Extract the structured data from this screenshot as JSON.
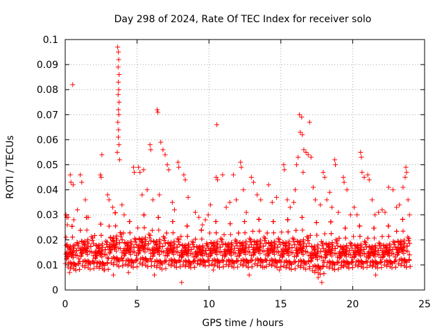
{
  "chart_data": {
    "type": "scatter",
    "title": "Day 298 of 2024, Rate Of TEC Index for receiver solo",
    "xlabel": "GPS time / hours",
    "ylabel": "ROTI / TECUs",
    "xlim": [
      0,
      25
    ],
    "ylim": [
      0,
      0.1
    ],
    "x_ticks": [
      "0",
      "5",
      "10",
      "15",
      "20",
      "25"
    ],
    "y_ticks": [
      "0",
      "0.01",
      "0.02",
      "0.03",
      "0.04",
      "0.05",
      "0.06",
      "0.07",
      "0.08",
      "0.09",
      "0.1"
    ],
    "grid": true,
    "marker": "+",
    "series": [
      {
        "name": "ROTI",
        "color": "#ff0000",
        "points": [
          [
            0.52,
            0.082
          ],
          [
            3.65,
            0.097
          ],
          [
            3.7,
            0.095
          ],
          [
            3.72,
            0.092
          ],
          [
            3.68,
            0.089
          ],
          [
            3.75,
            0.086
          ],
          [
            3.7,
            0.083
          ],
          [
            3.72,
            0.08
          ],
          [
            3.68,
            0.078
          ],
          [
            3.75,
            0.075
          ],
          [
            3.7,
            0.072
          ],
          [
            3.73,
            0.07
          ],
          [
            3.66,
            0.067
          ],
          [
            3.71,
            0.064
          ],
          [
            3.69,
            0.061
          ],
          [
            3.74,
            0.058
          ],
          [
            3.62,
            0.055
          ],
          [
            3.78,
            0.052
          ],
          [
            6.4,
            0.072
          ],
          [
            6.45,
            0.071
          ],
          [
            10.55,
            0.066
          ],
          [
            16.3,
            0.07
          ],
          [
            16.45,
            0.069
          ],
          [
            16.35,
            0.063
          ],
          [
            16.5,
            0.062
          ],
          [
            17.0,
            0.067
          ],
          [
            8.1,
            0.003
          ],
          [
            5.9,
            0.058
          ],
          [
            5.95,
            0.056
          ],
          [
            6.65,
            0.059
          ],
          [
            6.8,
            0.056
          ],
          [
            6.95,
            0.054
          ],
          [
            2.55,
            0.054
          ],
          [
            20.55,
            0.055
          ],
          [
            20.6,
            0.053
          ],
          [
            16.6,
            0.056
          ],
          [
            16.75,
            0.055
          ],
          [
            16.9,
            0.054
          ],
          [
            17.1,
            0.053
          ],
          [
            16.2,
            0.053
          ],
          [
            16.1,
            0.05
          ],
          [
            18.75,
            0.052
          ],
          [
            18.8,
            0.05
          ],
          [
            12.2,
            0.051
          ],
          [
            12.25,
            0.049
          ],
          [
            7.85,
            0.051
          ],
          [
            7.9,
            0.049
          ],
          [
            23.7,
            0.049
          ],
          [
            23.75,
            0.047
          ],
          [
            23.65,
            0.045
          ],
          [
            0.35,
            0.046
          ],
          [
            0.4,
            0.043
          ],
          [
            0.55,
            0.042
          ],
          [
            1.05,
            0.046
          ],
          [
            1.15,
            0.043
          ],
          [
            2.45,
            0.046
          ],
          [
            2.5,
            0.045
          ],
          [
            4.75,
            0.049
          ],
          [
            4.8,
            0.047
          ],
          [
            5.1,
            0.049
          ],
          [
            5.2,
            0.047
          ],
          [
            5.45,
            0.048
          ],
          [
            7.1,
            0.05
          ],
          [
            7.2,
            0.048
          ],
          [
            8.25,
            0.046
          ],
          [
            8.35,
            0.044
          ],
          [
            10.5,
            0.045
          ],
          [
            10.6,
            0.044
          ],
          [
            10.95,
            0.046
          ],
          [
            11.7,
            0.046
          ],
          [
            12.95,
            0.045
          ],
          [
            13.1,
            0.043
          ],
          [
            14.15,
            0.042
          ],
          [
            15.2,
            0.05
          ],
          [
            15.25,
            0.048
          ],
          [
            16.55,
            0.047
          ],
          [
            17.95,
            0.047
          ],
          [
            18.05,
            0.045
          ],
          [
            19.35,
            0.045
          ],
          [
            19.4,
            0.043
          ],
          [
            20.65,
            0.047
          ],
          [
            20.8,
            0.045
          ],
          [
            21.05,
            0.046
          ],
          [
            21.15,
            0.044
          ],
          [
            22.5,
            0.041
          ],
          [
            22.8,
            0.04
          ],
          [
            23.5,
            0.041
          ],
          [
            0.05,
            0.03
          ],
          [
            0.1,
            0.029
          ],
          [
            0.2,
            0.029
          ],
          [
            0.15,
            0.026
          ],
          [
            0.25,
            0.011
          ],
          [
            0.3,
            0.007
          ],
          [
            0.6,
            0.028
          ],
          [
            0.85,
            0.032
          ],
          [
            1.4,
            0.036
          ],
          [
            1.6,
            0.029
          ],
          [
            2.2,
            0.011
          ],
          [
            2.7,
            0.008
          ],
          [
            2.95,
            0.038
          ],
          [
            3.05,
            0.036
          ],
          [
            3.3,
            0.033
          ],
          [
            3.35,
            0.006
          ],
          [
            3.95,
            0.034
          ],
          [
            4.1,
            0.03
          ],
          [
            4.4,
            0.007
          ],
          [
            5.35,
            0.038
          ],
          [
            5.7,
            0.04
          ],
          [
            6.1,
            0.036
          ],
          [
            6.2,
            0.006
          ],
          [
            6.55,
            0.038
          ],
          [
            7.45,
            0.035
          ],
          [
            7.6,
            0.032
          ],
          [
            8.55,
            0.037
          ],
          [
            8.7,
            0.01
          ],
          [
            9.05,
            0.031
          ],
          [
            9.3,
            0.029
          ],
          [
            9.55,
            0.026
          ],
          [
            9.75,
            0.028
          ],
          [
            9.95,
            0.03
          ],
          [
            10.1,
            0.034
          ],
          [
            10.3,
            0.008
          ],
          [
            11.2,
            0.033
          ],
          [
            11.45,
            0.035
          ],
          [
            11.9,
            0.036
          ],
          [
            12.4,
            0.04
          ],
          [
            12.6,
            0.031
          ],
          [
            13.35,
            0.038
          ],
          [
            13.6,
            0.036
          ],
          [
            13.85,
            0.009
          ],
          [
            14.4,
            0.035
          ],
          [
            14.7,
            0.037
          ],
          [
            14.9,
            0.008
          ],
          [
            15.45,
            0.036
          ],
          [
            15.65,
            0.033
          ],
          [
            15.9,
            0.035
          ],
          [
            16.0,
            0.04
          ],
          [
            17.25,
            0.041
          ],
          [
            17.4,
            0.036
          ],
          [
            17.6,
            0.005
          ],
          [
            17.75,
            0.034
          ],
          [
            17.85,
            0.003
          ],
          [
            18.2,
            0.036
          ],
          [
            18.4,
            0.039
          ],
          [
            18.55,
            0.033
          ],
          [
            19.0,
            0.031
          ],
          [
            19.2,
            0.009
          ],
          [
            19.6,
            0.04
          ],
          [
            19.85,
            0.03
          ],
          [
            20.1,
            0.033
          ],
          [
            20.3,
            0.03
          ],
          [
            21.35,
            0.036
          ],
          [
            21.55,
            0.03
          ],
          [
            21.8,
            0.031
          ],
          [
            22.05,
            0.032
          ],
          [
            22.25,
            0.031
          ],
          [
            23.05,
            0.033
          ],
          [
            23.25,
            0.034
          ],
          [
            23.85,
            0.036
          ],
          [
            23.95,
            0.03
          ],
          [
            12.8,
            0.006
          ],
          [
            21.6,
            0.006
          ]
        ],
        "dense_band": {
          "description": "dense cloud of points across the whole day",
          "bins": [
            {
              "x_from": 0,
              "x_to": 1,
              "y_min": 0.006,
              "y_max": 0.028
            },
            {
              "x_from": 1,
              "x_to": 2,
              "y_min": 0.006,
              "y_max": 0.032
            },
            {
              "x_from": 2,
              "x_to": 3,
              "y_min": 0.006,
              "y_max": 0.029
            },
            {
              "x_from": 3,
              "x_to": 4,
              "y_min": 0.007,
              "y_max": 0.034
            },
            {
              "x_from": 4,
              "x_to": 5,
              "y_min": 0.007,
              "y_max": 0.03
            },
            {
              "x_from": 5,
              "x_to": 6,
              "y_min": 0.007,
              "y_max": 0.033
            },
            {
              "x_from": 6,
              "x_to": 7,
              "y_min": 0.006,
              "y_max": 0.032
            },
            {
              "x_from": 7,
              "x_to": 8,
              "y_min": 0.007,
              "y_max": 0.03
            },
            {
              "x_from": 8,
              "x_to": 9,
              "y_min": 0.007,
              "y_max": 0.028
            },
            {
              "x_from": 9,
              "x_to": 10,
              "y_min": 0.008,
              "y_max": 0.026
            },
            {
              "x_from": 10,
              "x_to": 11,
              "y_min": 0.007,
              "y_max": 0.03
            },
            {
              "x_from": 11,
              "x_to": 12,
              "y_min": 0.007,
              "y_max": 0.029
            },
            {
              "x_from": 12,
              "x_to": 13,
              "y_min": 0.007,
              "y_max": 0.03
            },
            {
              "x_from": 13,
              "x_to": 14,
              "y_min": 0.007,
              "y_max": 0.031
            },
            {
              "x_from": 14,
              "x_to": 15,
              "y_min": 0.007,
              "y_max": 0.03
            },
            {
              "x_from": 15,
              "x_to": 16,
              "y_min": 0.006,
              "y_max": 0.031
            },
            {
              "x_from": 16,
              "x_to": 17,
              "y_min": 0.006,
              "y_max": 0.032
            },
            {
              "x_from": 17,
              "x_to": 18,
              "y_min": 0.004,
              "y_max": 0.03
            },
            {
              "x_from": 18,
              "x_to": 19,
              "y_min": 0.006,
              "y_max": 0.03
            },
            {
              "x_from": 19,
              "x_to": 20,
              "y_min": 0.007,
              "y_max": 0.027
            },
            {
              "x_from": 20,
              "x_to": 21,
              "y_min": 0.007,
              "y_max": 0.028
            },
            {
              "x_from": 21,
              "x_to": 22,
              "y_min": 0.007,
              "y_max": 0.027
            },
            {
              "x_from": 22,
              "x_to": 23,
              "y_min": 0.007,
              "y_max": 0.028
            },
            {
              "x_from": 23,
              "x_to": 24,
              "y_min": 0.007,
              "y_max": 0.031
            }
          ],
          "points_per_hour": 110
        }
      }
    ]
  }
}
